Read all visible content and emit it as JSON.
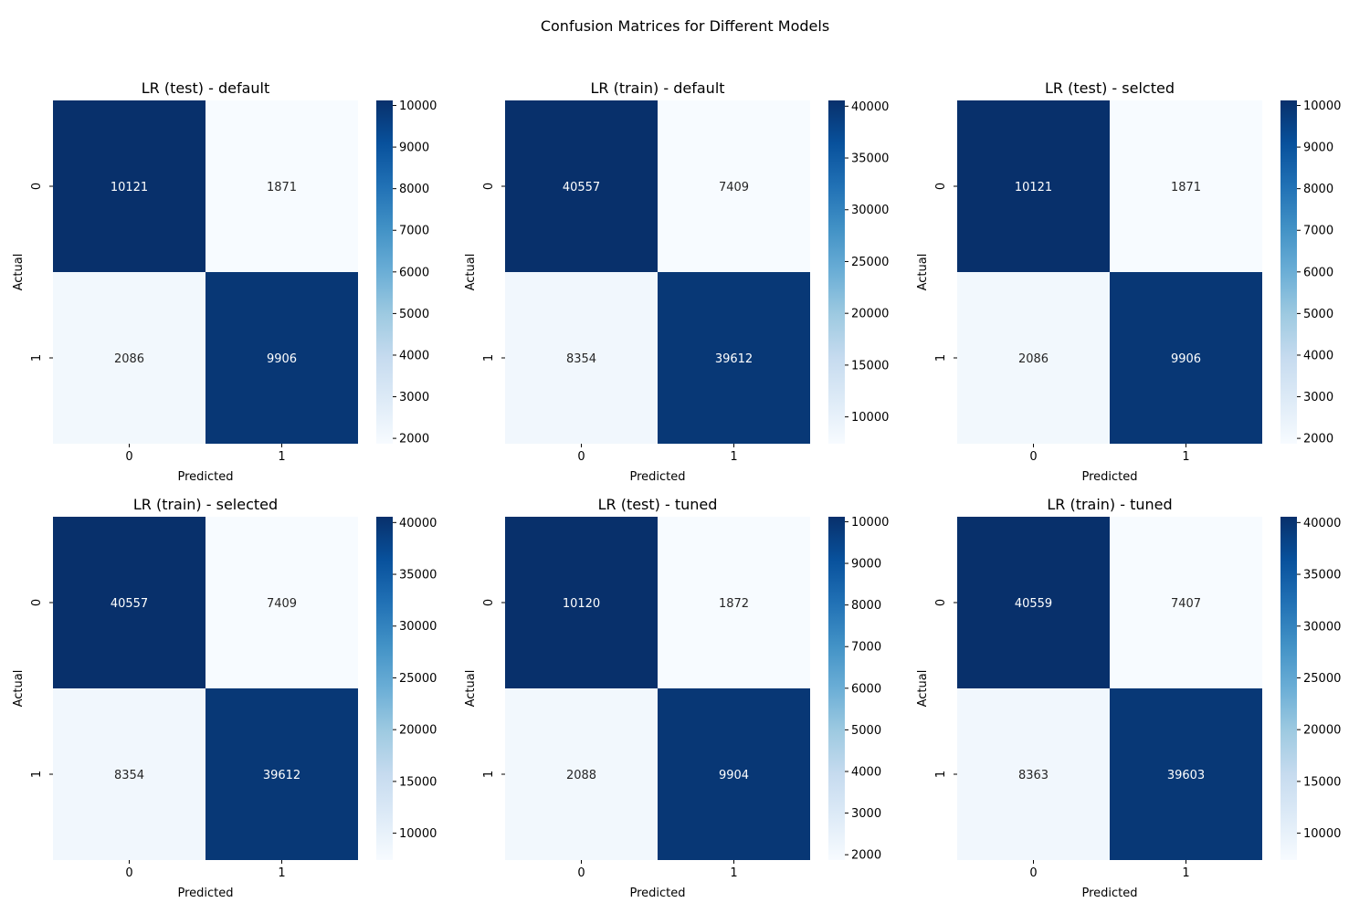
{
  "figure": {
    "suptitle": "Confusion Matrices for Different Models"
  },
  "chart_data": [
    {
      "type": "heatmap",
      "title": "LR (test) - default",
      "xlabel": "Predicted",
      "ylabel": "Actual",
      "x_categories": [
        "0",
        "1"
      ],
      "y_categories": [
        "0",
        "1"
      ],
      "values": [
        [
          10121,
          1871
        ],
        [
          2086,
          9906
        ]
      ],
      "colormap": "Blues",
      "colorbar_ticks": [
        2000,
        3000,
        4000,
        5000,
        6000,
        7000,
        8000,
        9000,
        10000
      ]
    },
    {
      "type": "heatmap",
      "title": "LR (train) - default",
      "xlabel": "Predicted",
      "ylabel": "Actual",
      "x_categories": [
        "0",
        "1"
      ],
      "y_categories": [
        "0",
        "1"
      ],
      "values": [
        [
          40557,
          7409
        ],
        [
          8354,
          39612
        ]
      ],
      "colormap": "Blues",
      "colorbar_ticks": [
        10000,
        15000,
        20000,
        25000,
        30000,
        35000,
        40000
      ]
    },
    {
      "type": "heatmap",
      "title": "LR (test) - selcted",
      "xlabel": "Predicted",
      "ylabel": "Actual",
      "x_categories": [
        "0",
        "1"
      ],
      "y_categories": [
        "0",
        "1"
      ],
      "values": [
        [
          10121,
          1871
        ],
        [
          2086,
          9906
        ]
      ],
      "colormap": "Blues",
      "colorbar_ticks": [
        2000,
        3000,
        4000,
        5000,
        6000,
        7000,
        8000,
        9000,
        10000
      ]
    },
    {
      "type": "heatmap",
      "title": "LR (train) - selected",
      "xlabel": "Predicted",
      "ylabel": "Actual",
      "x_categories": [
        "0",
        "1"
      ],
      "y_categories": [
        "0",
        "1"
      ],
      "values": [
        [
          40557,
          7409
        ],
        [
          8354,
          39612
        ]
      ],
      "colormap": "Blues",
      "colorbar_ticks": [
        10000,
        15000,
        20000,
        25000,
        30000,
        35000,
        40000
      ]
    },
    {
      "type": "heatmap",
      "title": "LR (test) - tuned",
      "xlabel": "Predicted",
      "ylabel": "Actual",
      "x_categories": [
        "0",
        "1"
      ],
      "y_categories": [
        "0",
        "1"
      ],
      "values": [
        [
          10120,
          1872
        ],
        [
          2088,
          9904
        ]
      ],
      "colormap": "Blues",
      "colorbar_ticks": [
        2000,
        3000,
        4000,
        5000,
        6000,
        7000,
        8000,
        9000,
        10000
      ]
    },
    {
      "type": "heatmap",
      "title": "LR (train) - tuned",
      "xlabel": "Predicted",
      "ylabel": "Actual",
      "x_categories": [
        "0",
        "1"
      ],
      "y_categories": [
        "0",
        "1"
      ],
      "values": [
        [
          40559,
          7407
        ],
        [
          8363,
          39603
        ]
      ],
      "colormap": "Blues",
      "colorbar_ticks": [
        10000,
        15000,
        20000,
        25000,
        30000,
        35000,
        40000
      ]
    }
  ]
}
